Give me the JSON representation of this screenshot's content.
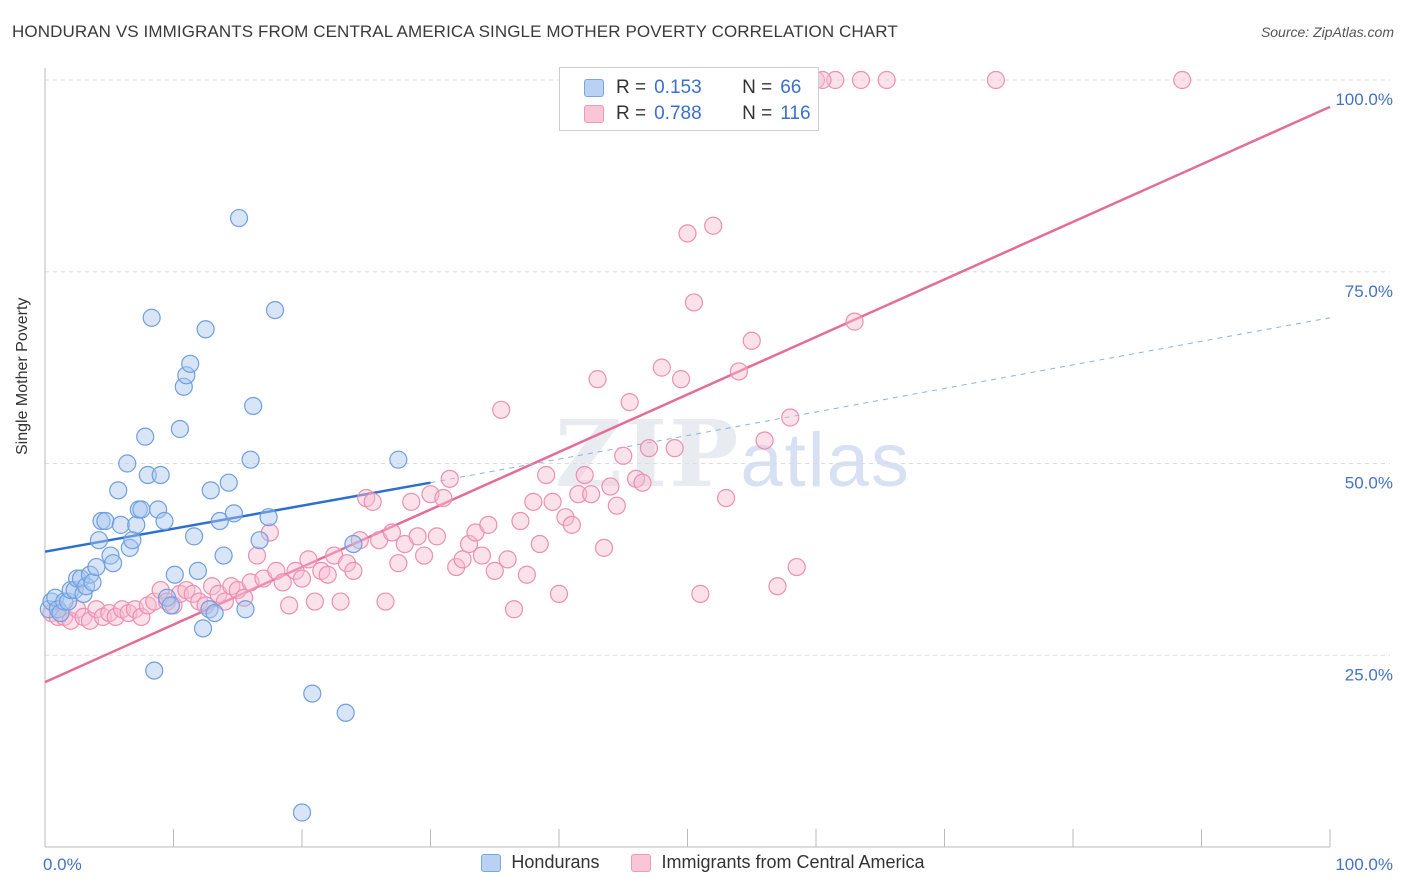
{
  "header": {
    "title": "HONDURAN VS IMMIGRANTS FROM CENTRAL AMERICA SINGLE MOTHER POVERTY CORRELATION CHART",
    "source": "Source: ZipAtlas.com"
  },
  "watermark": {
    "zip": "ZIP",
    "atlas": "atlas"
  },
  "legend": {
    "r_label": "R =",
    "n_label": "N =",
    "rows": [
      {
        "r": "0.153",
        "n": "66"
      },
      {
        "r": "0.788",
        "n": "116"
      }
    ]
  },
  "colors": {
    "blue_fill": "#a9c6ee",
    "blue_stroke": "#6f9fe0",
    "blue_line": "#2b6fd1",
    "pink_fill": "#f6bcd0",
    "pink_stroke": "#ec8fb0",
    "pink_line": "#e46d97",
    "tick": "#4472c4",
    "grid": "#dcdcdc"
  },
  "chart_data": {
    "type": "scatter",
    "title": "HONDURAN VS IMMIGRANTS FROM CENTRAL AMERICA SINGLE MOTHER POVERTY CORRELATION CHART",
    "xlabel": "",
    "ylabel": "Single Mother Poverty",
    "x_ticks": [
      "0.0%",
      "100.0%"
    ],
    "y_ticks": [
      "25.0%",
      "50.0%",
      "75.0%",
      "100.0%"
    ],
    "xlim": [
      0,
      100
    ],
    "ylim": [
      0,
      100
    ],
    "grid": true,
    "legend_position": "bottom",
    "series": [
      {
        "name": "Hondurans",
        "r": 0.153,
        "n": 66,
        "trend_solid": [
          [
            0,
            38.5
          ],
          [
            30,
            47.5
          ]
        ],
        "trend_dashed": [
          [
            30,
            47.5
          ],
          [
            100,
            69.0
          ]
        ],
        "points": [
          [
            0.3,
            31
          ],
          [
            0.5,
            32
          ],
          [
            0.8,
            32.5
          ],
          [
            1.0,
            31
          ],
          [
            1.2,
            30.5
          ],
          [
            1.5,
            32
          ],
          [
            1.8,
            32
          ],
          [
            2.0,
            33.5
          ],
          [
            2.3,
            33.5
          ],
          [
            2.5,
            35
          ],
          [
            2.8,
            35
          ],
          [
            3.0,
            33
          ],
          [
            3.2,
            34
          ],
          [
            3.5,
            35.5
          ],
          [
            3.7,
            34.5
          ],
          [
            4.0,
            36.5
          ],
          [
            4.2,
            40
          ],
          [
            4.4,
            42.5
          ],
          [
            4.7,
            42.5
          ],
          [
            5.1,
            38
          ],
          [
            5.3,
            37
          ],
          [
            5.7,
            46.5
          ],
          [
            5.9,
            42
          ],
          [
            6.4,
            50
          ],
          [
            6.6,
            39
          ],
          [
            6.8,
            40
          ],
          [
            7.1,
            42
          ],
          [
            7.3,
            44
          ],
          [
            7.5,
            44
          ],
          [
            7.8,
            53.5
          ],
          [
            8.0,
            48.5
          ],
          [
            8.3,
            69
          ],
          [
            8.5,
            23
          ],
          [
            8.8,
            44
          ],
          [
            9.0,
            48.5
          ],
          [
            9.3,
            42.5
          ],
          [
            9.5,
            32.5
          ],
          [
            9.8,
            31.5
          ],
          [
            10.1,
            35.5
          ],
          [
            10.5,
            54.5
          ],
          [
            10.8,
            60
          ],
          [
            11.0,
            61.5
          ],
          [
            11.3,
            63
          ],
          [
            11.6,
            40.5
          ],
          [
            11.9,
            36
          ],
          [
            12.3,
            28.5
          ],
          [
            12.5,
            67.5
          ],
          [
            12.8,
            31
          ],
          [
            12.9,
            46.5
          ],
          [
            13.2,
            30.5
          ],
          [
            13.6,
            42.5
          ],
          [
            13.9,
            38
          ],
          [
            14.3,
            47.5
          ],
          [
            14.7,
            43.5
          ],
          [
            15.1,
            82
          ],
          [
            15.6,
            31
          ],
          [
            16.2,
            57.5
          ],
          [
            16.7,
            40
          ],
          [
            17.4,
            43
          ],
          [
            17.9,
            70
          ],
          [
            20.0,
            4.5
          ],
          [
            20.8,
            20
          ],
          [
            23.4,
            17.5
          ],
          [
            24.0,
            39.5
          ],
          [
            27.5,
            50.5
          ],
          [
            16.0,
            50.5
          ]
        ]
      },
      {
        "name": "Immigrants from Central America",
        "r": 0.788,
        "n": 116,
        "trend_solid": [
          [
            0,
            21.5
          ],
          [
            100,
            96.5
          ]
        ],
        "points": [
          [
            0.5,
            30.5
          ],
          [
            1.0,
            30
          ],
          [
            1.5,
            30
          ],
          [
            2.0,
            29.5
          ],
          [
            2.5,
            31
          ],
          [
            3.0,
            30
          ],
          [
            3.5,
            29.5
          ],
          [
            4.0,
            31
          ],
          [
            4.5,
            30
          ],
          [
            5.0,
            30.5
          ],
          [
            5.5,
            30
          ],
          [
            6.0,
            31
          ],
          [
            6.5,
            30.5
          ],
          [
            7.0,
            31
          ],
          [
            7.5,
            30
          ],
          [
            8.0,
            31.5
          ],
          [
            8.5,
            32
          ],
          [
            9.0,
            33.5
          ],
          [
            9.5,
            32
          ],
          [
            10.0,
            31.5
          ],
          [
            10.5,
            33
          ],
          [
            11.0,
            33.5
          ],
          [
            11.5,
            33
          ],
          [
            12.0,
            32
          ],
          [
            12.5,
            31.5
          ],
          [
            13.0,
            34
          ],
          [
            13.5,
            33
          ],
          [
            14.0,
            32
          ],
          [
            14.5,
            34
          ],
          [
            15.0,
            33.5
          ],
          [
            15.5,
            32.5
          ],
          [
            16.0,
            34.5
          ],
          [
            16.5,
            38
          ],
          [
            17.0,
            35
          ],
          [
            17.5,
            41
          ],
          [
            18.0,
            36
          ],
          [
            18.5,
            34.5
          ],
          [
            19.0,
            31.5
          ],
          [
            19.5,
            36
          ],
          [
            20.0,
            35
          ],
          [
            20.5,
            37.5
          ],
          [
            21.0,
            32
          ],
          [
            21.5,
            36
          ],
          [
            22.0,
            35.5
          ],
          [
            22.5,
            38
          ],
          [
            23.0,
            32
          ],
          [
            23.5,
            37
          ],
          [
            24.0,
            36
          ],
          [
            24.5,
            40
          ],
          [
            25.0,
            45.5
          ],
          [
            25.5,
            45
          ],
          [
            26.0,
            40
          ],
          [
            26.5,
            32
          ],
          [
            27.0,
            41
          ],
          [
            27.5,
            37
          ],
          [
            28.0,
            39.5
          ],
          [
            28.5,
            45
          ],
          [
            29.0,
            40.5
          ],
          [
            29.5,
            38
          ],
          [
            30.0,
            46
          ],
          [
            30.5,
            40.5
          ],
          [
            31.0,
            45.5
          ],
          [
            31.5,
            48
          ],
          [
            32.0,
            36.5
          ],
          [
            32.5,
            37.5
          ],
          [
            33.0,
            39.5
          ],
          [
            33.5,
            41
          ],
          [
            34.0,
            38
          ],
          [
            34.5,
            42
          ],
          [
            35.0,
            36
          ],
          [
            35.5,
            57
          ],
          [
            36.0,
            37.5
          ],
          [
            36.5,
            31
          ],
          [
            37.0,
            42.5
          ],
          [
            37.5,
            35.5
          ],
          [
            38.0,
            45
          ],
          [
            38.5,
            39.5
          ],
          [
            39.0,
            48.5
          ],
          [
            39.5,
            45
          ],
          [
            40.0,
            33
          ],
          [
            40.5,
            43
          ],
          [
            41.0,
            42
          ],
          [
            41.5,
            46
          ],
          [
            42.0,
            48.5
          ],
          [
            42.5,
            46
          ],
          [
            43.0,
            61
          ],
          [
            43.5,
            39
          ],
          [
            44.0,
            47
          ],
          [
            44.5,
            44.5
          ],
          [
            45.0,
            51
          ],
          [
            45.5,
            58
          ],
          [
            46.0,
            48
          ],
          [
            46.5,
            47.5
          ],
          [
            47.0,
            52
          ],
          [
            48.0,
            62.5
          ],
          [
            49.0,
            52
          ],
          [
            49.5,
            61
          ],
          [
            50.0,
            80
          ],
          [
            50.5,
            71
          ],
          [
            51.0,
            33
          ],
          [
            52.0,
            81
          ],
          [
            53.0,
            45.5
          ],
          [
            54.0,
            62
          ],
          [
            55.0,
            66
          ],
          [
            56.0,
            53
          ],
          [
            57.0,
            34
          ],
          [
            58.0,
            56
          ],
          [
            58.5,
            36.5
          ],
          [
            63.0,
            68.5
          ],
          [
            60.0,
            100
          ],
          [
            61.5,
            100
          ],
          [
            63.5,
            100
          ],
          [
            65.5,
            100
          ],
          [
            74.0,
            100
          ],
          [
            88.5,
            100
          ],
          [
            60.5,
            100
          ]
        ]
      }
    ]
  }
}
